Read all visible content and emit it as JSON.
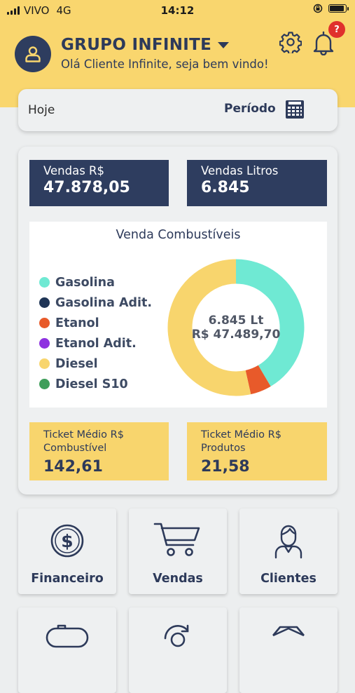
{
  "status_bar": {
    "carrier": "VIVO",
    "network": "4G",
    "time": "14:12",
    "battery_level": 0.9
  },
  "header": {
    "org_name": "GRUPO INFINITE",
    "greeting": "Olá Cliente Infinite, seja bem vindo!",
    "notifications_badge": "?",
    "avatar_icon": "user-icon",
    "settings_icon": "gear-icon",
    "notifications_icon": "bell-icon",
    "dropdown_icon": "caret-down-icon"
  },
  "period_filter": {
    "selected": "Hoje",
    "label": "Período",
    "icon": "calendar-icon"
  },
  "kpis": {
    "sales_value": {
      "label": "Vendas R$",
      "value": "47.878,05"
    },
    "sales_liters": {
      "label": "Vendas Litros",
      "value": "6.845"
    },
    "ticket_fuel": {
      "label_line1": "Ticket Médio R$",
      "label_line2": "Combustível",
      "value": "142,61"
    },
    "ticket_products": {
      "label_line1": "Ticket Médio R$",
      "label_line2": "Produtos",
      "value": "21,58"
    }
  },
  "chart_data": {
    "type": "pie",
    "title": "Venda Combustíveis",
    "center_text": [
      "6.845 Lt",
      "R$ 47.489,70"
    ],
    "legend_position": "left",
    "categories": [
      "Gasolina",
      "Gasolina Adit.",
      "Etanol",
      "Etanol Adit.",
      "Diesel",
      "Diesel S10"
    ],
    "values": [
      41.5,
      0,
      5,
      0,
      53.5,
      0
    ],
    "colors": [
      "#6fe9d3",
      "#1f3556",
      "#e85a2a",
      "#8e32e0",
      "#f8d56d",
      "#3f9e5a"
    ]
  },
  "menu": {
    "tiles": [
      {
        "label": "Financeiro",
        "icon": "dollar-icon"
      },
      {
        "label": "Vendas",
        "icon": "cart-icon"
      },
      {
        "label": "Clientes",
        "icon": "customer-icon"
      },
      {
        "label": "",
        "icon": "tanker-truck-icon"
      },
      {
        "label": "",
        "icon": "money-cycle-icon"
      },
      {
        "label": "",
        "icon": "box-icon"
      }
    ]
  }
}
